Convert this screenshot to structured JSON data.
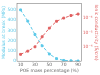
{
  "chart_data": {
    "type": "line",
    "xlabel": "POE mass percentage (%)",
    "ylabel": "Modulus at break (MPa)",
    "y2label": "Ionic conductivity (S/cm)",
    "x": [
      10,
      20,
      30,
      40,
      50,
      60,
      70,
      80,
      90
    ],
    "series": [
      {
        "color": "#5bc8e8",
        "marker": "square",
        "line_style": "dashed",
        "values": [
          500,
          390,
          260,
          150,
          70,
          25,
          8,
          4,
          2
        ]
      },
      {
        "color": "#e06060",
        "marker": "square",
        "line_style": "dashed",
        "axis": "y2",
        "values": [
          3e-07,
          5e-07,
          1e-06,
          5e-06,
          2e-05,
          6e-05,
          0.0001,
          0.00015,
          0.00019
        ]
      }
    ],
    "xlim": [
      5,
      95
    ],
    "xticks": [
      10,
      30,
      50,
      70,
      90
    ],
    "ylim": [
      0,
      560
    ],
    "yticks": [
      0,
      100,
      200,
      300,
      400,
      500
    ],
    "y2lim": [
      1e-07,
      0.001
    ],
    "y2ticks": [
      {
        "value": 1e-06,
        "label": "10⁻⁶"
      },
      {
        "value": 1e-05,
        "label": "10⁻⁵"
      },
      {
        "value": 0.0001,
        "label": "10⁻⁴"
      }
    ],
    "log": "y2",
    "grid": false
  }
}
